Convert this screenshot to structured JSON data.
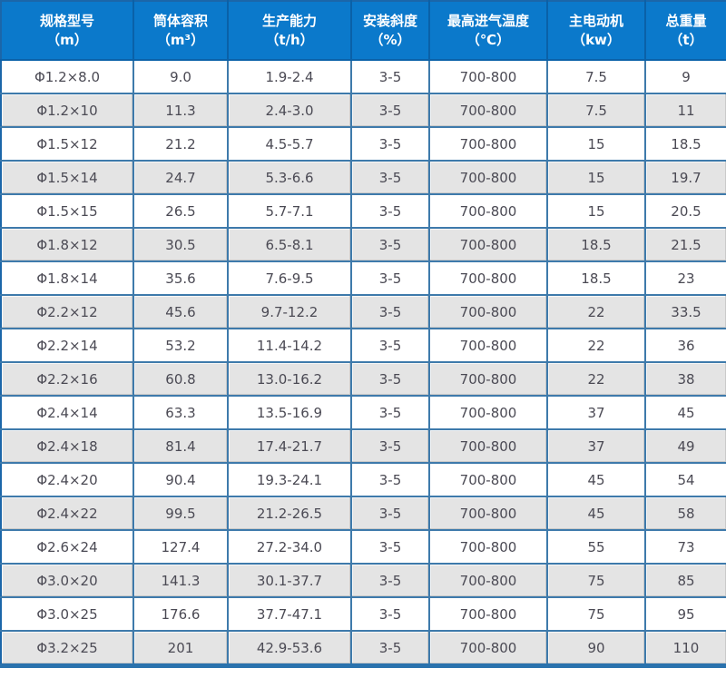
{
  "table": {
    "columns": [
      {
        "label": "规格型号",
        "unit": "（m）"
      },
      {
        "label": "筒体容积",
        "unit": "（m³）"
      },
      {
        "label": "生产能力",
        "unit": "（t/h）"
      },
      {
        "label": "安装斜度",
        "unit": "（%）"
      },
      {
        "label": "最高进气温度",
        "unit": "（℃）"
      },
      {
        "label": "主电动机",
        "unit": "（kw）"
      },
      {
        "label": "总重量",
        "unit": "（t）"
      }
    ],
    "rows": [
      [
        "Φ1.2×8.0",
        "9.0",
        "1.9-2.4",
        "3-5",
        "700-800",
        "7.5",
        "9"
      ],
      [
        "Φ1.2×10",
        "11.3",
        "2.4-3.0",
        "3-5",
        "700-800",
        "7.5",
        "11"
      ],
      [
        "Φ1.5×12",
        "21.2",
        "4.5-5.7",
        "3-5",
        "700-800",
        "15",
        "18.5"
      ],
      [
        "Φ1.5×14",
        "24.7",
        "5.3-6.6",
        "3-5",
        "700-800",
        "15",
        "19.7"
      ],
      [
        "Φ1.5×15",
        "26.5",
        "5.7-7.1",
        "3-5",
        "700-800",
        "15",
        "20.5"
      ],
      [
        "Φ1.8×12",
        "30.5",
        "6.5-8.1",
        "3-5",
        "700-800",
        "18.5",
        "21.5"
      ],
      [
        "Φ1.8×14",
        "35.6",
        "7.6-9.5",
        "3-5",
        "700-800",
        "18.5",
        "23"
      ],
      [
        "Φ2.2×12",
        "45.6",
        "9.7-12.2",
        "3-5",
        "700-800",
        "22",
        "33.5"
      ],
      [
        "Φ2.2×14",
        "53.2",
        "11.4-14.2",
        "3-5",
        "700-800",
        "22",
        "36"
      ],
      [
        "Φ2.2×16",
        "60.8",
        "13.0-16.2",
        "3-5",
        "700-800",
        "22",
        "38"
      ],
      [
        "Φ2.4×14",
        "63.3",
        "13.5-16.9",
        "3-5",
        "700-800",
        "37",
        "45"
      ],
      [
        "Φ2.4×18",
        "81.4",
        "17.4-21.7",
        "3-5",
        "700-800",
        "37",
        "49"
      ],
      [
        "Φ2.4×20",
        "90.4",
        "19.3-24.1",
        "3-5",
        "700-800",
        "45",
        "54"
      ],
      [
        "Φ2.4×22",
        "99.5",
        "21.2-26.5",
        "3-5",
        "700-800",
        "45",
        "58"
      ],
      [
        "Φ2.6×24",
        "127.4",
        "27.2-34.0",
        "3-5",
        "700-800",
        "55",
        "73"
      ],
      [
        "Φ3.0×20",
        "141.3",
        "30.1-37.7",
        "3-5",
        "700-800",
        "75",
        "85"
      ],
      [
        "Φ3.0×25",
        "176.6",
        "37.7-47.1",
        "3-5",
        "700-800",
        "75",
        "95"
      ],
      [
        "Φ3.2×25",
        "201",
        "42.9-53.6",
        "3-5",
        "700-800",
        "90",
        "110"
      ]
    ],
    "colors": {
      "header_bg": "#0b79cb",
      "header_text": "#ffffff",
      "header_border": "#0a61a8",
      "cell_border": "#3e7aab",
      "outer_border": "#1b66a9",
      "bottom_bar": "#2a72ad",
      "row_bg": "#ffffff",
      "row_alt_bg": "#e4e4e4",
      "body_text": "#4b4a54"
    }
  },
  "chart_data": {
    "type": "table",
    "title": "",
    "columns": [
      "规格型号（m）",
      "筒体容积（m³）",
      "生产能力（t/h）",
      "安装斜度（%）",
      "最高进气温度（℃）",
      "主电动机（kw）",
      "总重量（t）"
    ],
    "rows": [
      [
        "Φ1.2×8.0",
        9.0,
        "1.9-2.4",
        "3-5",
        "700-800",
        7.5,
        9
      ],
      [
        "Φ1.2×10",
        11.3,
        "2.4-3.0",
        "3-5",
        "700-800",
        7.5,
        11
      ],
      [
        "Φ1.5×12",
        21.2,
        "4.5-5.7",
        "3-5",
        "700-800",
        15,
        18.5
      ],
      [
        "Φ1.5×14",
        24.7,
        "5.3-6.6",
        "3-5",
        "700-800",
        15,
        19.7
      ],
      [
        "Φ1.5×15",
        26.5,
        "5.7-7.1",
        "3-5",
        "700-800",
        15,
        20.5
      ],
      [
        "Φ1.8×12",
        30.5,
        "6.5-8.1",
        "3-5",
        "700-800",
        18.5,
        21.5
      ],
      [
        "Φ1.8×14",
        35.6,
        "7.6-9.5",
        "3-5",
        "700-800",
        18.5,
        23
      ],
      [
        "Φ2.2×12",
        45.6,
        "9.7-12.2",
        "3-5",
        "700-800",
        22,
        33.5
      ],
      [
        "Φ2.2×14",
        53.2,
        "11.4-14.2",
        "3-5",
        "700-800",
        22,
        36
      ],
      [
        "Φ2.2×16",
        60.8,
        "13.0-16.2",
        "3-5",
        "700-800",
        22,
        38
      ],
      [
        "Φ2.4×14",
        63.3,
        "13.5-16.9",
        "3-5",
        "700-800",
        37,
        45
      ],
      [
        "Φ2.4×18",
        81.4,
        "17.4-21.7",
        "3-5",
        "700-800",
        37,
        49
      ],
      [
        "Φ2.4×20",
        90.4,
        "19.3-24.1",
        "3-5",
        "700-800",
        45,
        54
      ],
      [
        "Φ2.4×22",
        99.5,
        "21.2-26.5",
        "3-5",
        "700-800",
        45,
        58
      ],
      [
        "Φ2.6×24",
        127.4,
        "27.2-34.0",
        "3-5",
        "700-800",
        55,
        73
      ],
      [
        "Φ3.0×20",
        141.3,
        "30.1-37.7",
        "3-5",
        "700-800",
        75,
        85
      ],
      [
        "Φ3.0×25",
        176.6,
        "37.7-47.1",
        "3-5",
        "700-800",
        75,
        95
      ],
      [
        "Φ3.2×25",
        201,
        "42.9-53.6",
        "3-5",
        "700-800",
        90,
        110
      ]
    ]
  }
}
